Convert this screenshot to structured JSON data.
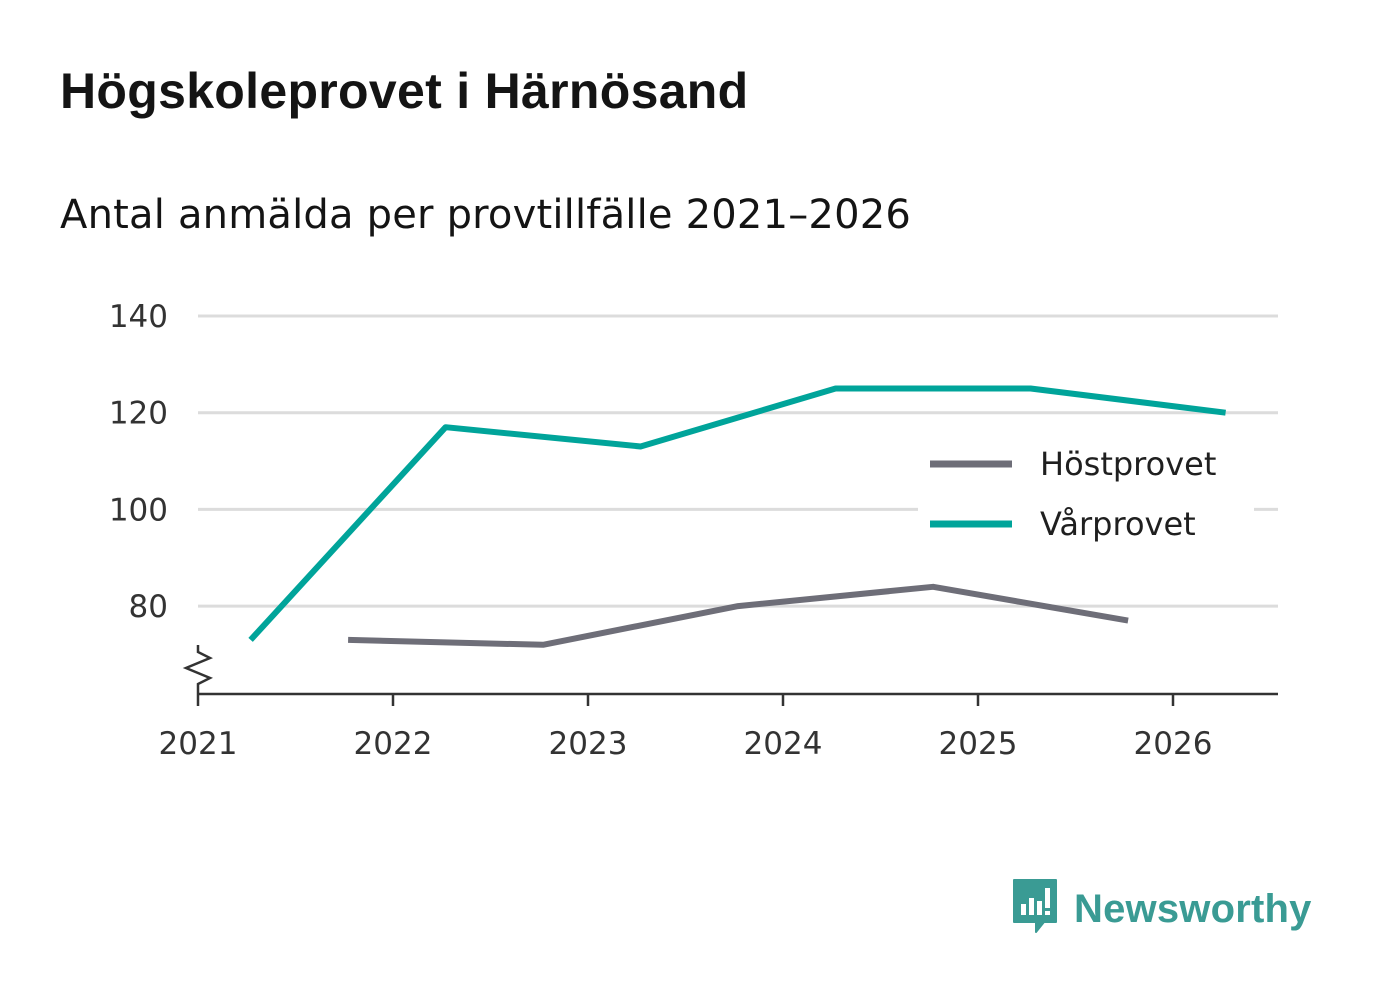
{
  "header": {
    "title": "Högskoleprovet i Härnösand",
    "subtitle": "Antal anmälda per provtillfälle 2021–2026"
  },
  "brand": {
    "name": "Newsworthy",
    "color": "#3a9b94",
    "icon": "newsworthy-logo-icon"
  },
  "chart_data": {
    "type": "line",
    "title": "Högskoleprovet i Härnösand",
    "subtitle": "Antal anmälda per provtillfälle 2021–2026",
    "xlabel": "",
    "ylabel": "",
    "x_ticks": [
      "2021",
      "2022",
      "2023",
      "2024",
      "2025",
      "2026"
    ],
    "y_ticks": [
      80,
      100,
      120,
      140
    ],
    "y_axis_break": true,
    "ylim": [
      62,
      142
    ],
    "xlim": [
      2021.0,
      2026.55
    ],
    "grid": true,
    "legend_position": "right",
    "series": [
      {
        "name": "Höstprovet",
        "color": "#6e6e78",
        "points": [
          {
            "x": 2021.77,
            "y": 73
          },
          {
            "x": 2022.77,
            "y": 72
          },
          {
            "x": 2023.77,
            "y": 80
          },
          {
            "x": 2024.77,
            "y": 84
          },
          {
            "x": 2025.77,
            "y": 77
          }
        ]
      },
      {
        "name": "Vårprovet",
        "color": "#00a49a",
        "points": [
          {
            "x": 2021.27,
            "y": 73
          },
          {
            "x": 2022.27,
            "y": 117
          },
          {
            "x": 2023.27,
            "y": 113
          },
          {
            "x": 2024.27,
            "y": 125
          },
          {
            "x": 2025.27,
            "y": 125
          },
          {
            "x": 2026.27,
            "y": 120
          }
        ]
      }
    ]
  }
}
